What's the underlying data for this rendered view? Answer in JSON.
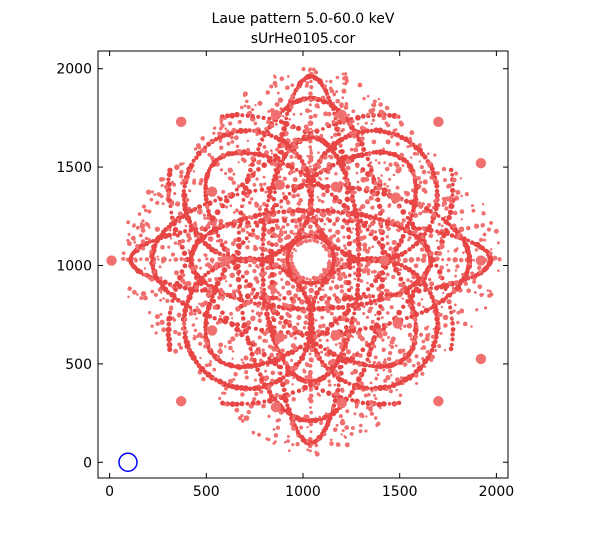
{
  "chart_data": {
    "type": "scatter",
    "title": "Laue pattern 5.0-60.0 keV",
    "subtitle": "sUrHe0105.cor",
    "xlabel": "",
    "ylabel": "",
    "xlim": [
      -60,
      2060
    ],
    "ylim": [
      -80,
      2090
    ],
    "x_ticks": [
      0,
      500,
      1000,
      1500,
      2000
    ],
    "y_ticks": [
      0,
      500,
      1000,
      1500,
      2000
    ],
    "grid": false,
    "point_color": "#f07070",
    "point_color_dense": "#e84545",
    "marker_color": "#0000ff",
    "marker_point": {
      "x": 95,
      "y": 0
    },
    "pattern": {
      "center": [
        1040,
        1030
      ],
      "outer_radius": 990,
      "inner_hole_radius": 85,
      "ring_radius": 155
    },
    "major_spots": [
      [
        10,
        1025
      ],
      [
        530,
        1375
      ],
      [
        600,
        1025
      ],
      [
        530,
        670
      ],
      [
        860,
        1765
      ],
      [
        880,
        1410
      ],
      [
        1200,
        1765
      ],
      [
        1170,
        1400
      ],
      [
        1480,
        1345
      ],
      [
        1920,
        1520
      ],
      [
        1420,
        1025
      ],
      [
        1920,
        1025
      ],
      [
        1490,
        705
      ],
      [
        1920,
        525
      ],
      [
        1170,
        645
      ],
      [
        880,
        635
      ],
      [
        860,
        280
      ],
      [
        1200,
        300
      ],
      [
        1700,
        310
      ],
      [
        1700,
        1730
      ],
      [
        370,
        1730
      ],
      [
        370,
        310
      ]
    ]
  }
}
